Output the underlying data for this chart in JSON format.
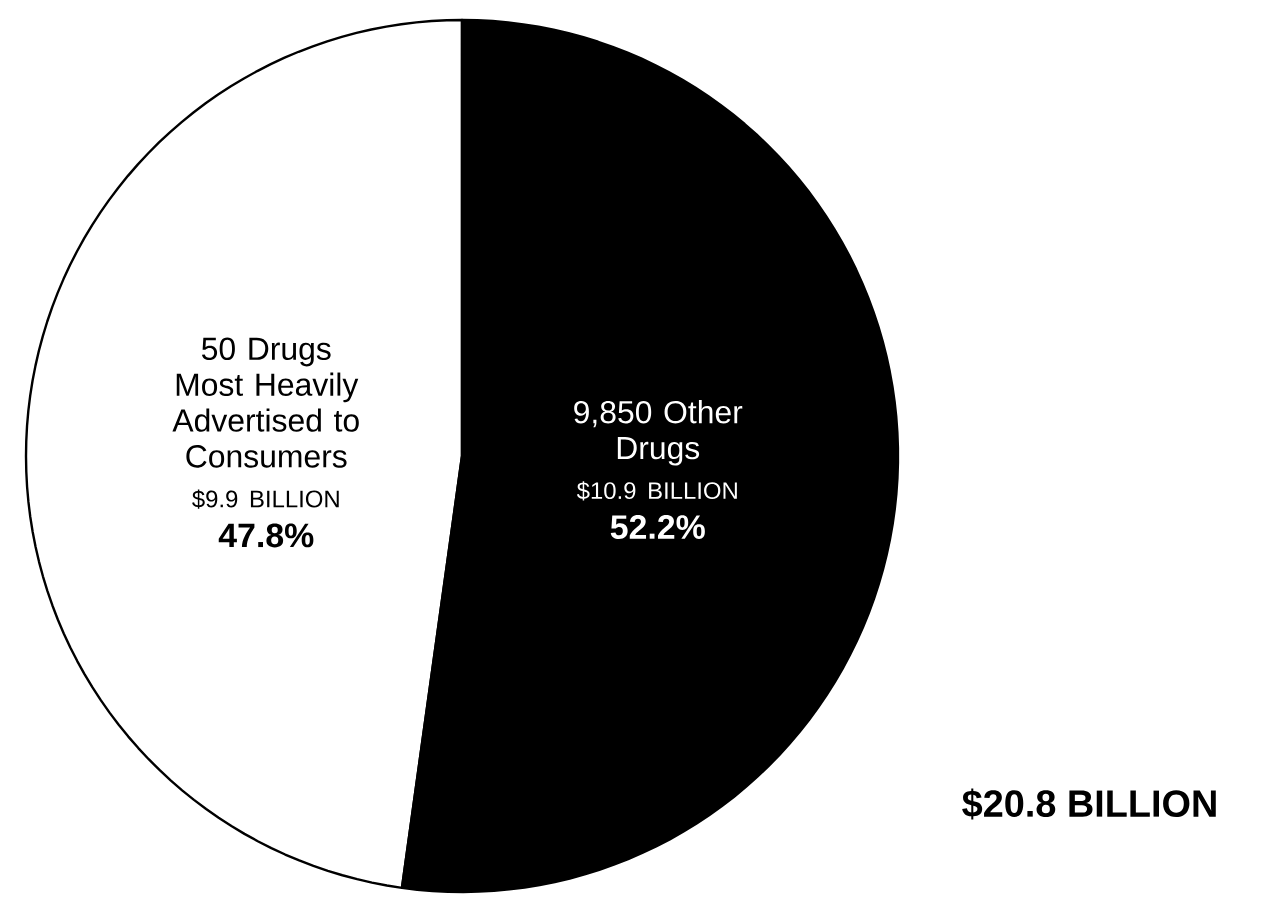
{
  "chart_data": {
    "type": "pie",
    "categories": [
      "50 Drugs Most Heavily Advertised to Consumers",
      "9,850 Other Drugs"
    ],
    "values": [
      47.8,
      52.2
    ],
    "colors": [
      "#ffffff",
      "#000000"
    ],
    "value_labels": [
      "47.8%",
      "52.2%"
    ],
    "annotations": [
      "$9.9 BILLION",
      "$10.9 BILLION",
      "$20.8 BILLION"
    ]
  }
}
